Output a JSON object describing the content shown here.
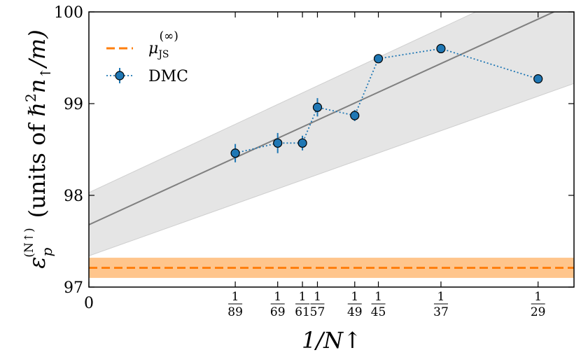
{
  "chart_data": {
    "type": "scatter",
    "title": "",
    "xlabel": "1/N↑",
    "ylabel": {
      "prefix": "ε",
      "prefix_sub": "p",
      "prefix_sup": "(N↑)",
      "units_text": "(units of ",
      "hbar": "ℏ",
      "sup2": "2",
      "n": "n",
      "n_sub": "↑",
      "tail": "/m)"
    },
    "xlim": [
      0,
      0.03724
    ],
    "ylim": [
      97,
      100
    ],
    "yticks": [
      97,
      98,
      99,
      100
    ],
    "ytick_labels": [
      "97",
      "98",
      "99",
      "100"
    ],
    "x_zero_label": "0",
    "xticks": [
      {
        "x": 0.011236,
        "num": "1",
        "den": "89"
      },
      {
        "x": 0.014493,
        "num": "1",
        "den": "69"
      },
      {
        "x": 0.016393,
        "num": "1",
        "den": "61"
      },
      {
        "x": 0.017544,
        "num": "1",
        "den": "57"
      },
      {
        "x": 0.020408,
        "num": "1",
        "den": "49"
      },
      {
        "x": 0.022222,
        "num": "1",
        "den": "45"
      },
      {
        "x": 0.027027,
        "num": "1",
        "den": "37"
      },
      {
        "x": 0.034483,
        "num": "1",
        "den": "29"
      }
    ],
    "series": [
      {
        "name": "DMC",
        "color": "#1f77b4",
        "x": [
          0.011236,
          0.014493,
          0.016393,
          0.017544,
          0.020408,
          0.022222,
          0.027027,
          0.034483
        ],
        "y": [
          98.46,
          98.57,
          98.57,
          98.96,
          98.87,
          99.49,
          99.6,
          99.27
        ],
        "yerr": [
          0.1,
          0.11,
          0.08,
          0.1,
          0.06,
          0.04,
          0.04,
          0.03
        ]
      }
    ],
    "fit": {
      "intercept": 97.68,
      "slope": 65.0,
      "color": "#808080"
    },
    "fit_band": {
      "upper_intercept": 98.03,
      "upper_end": 100.5,
      "lower_intercept": 97.34,
      "lower_end": 99.22
    },
    "reference": {
      "name": "μ_JS^(∞)",
      "value": 97.21,
      "band": [
        97.1,
        97.32
      ],
      "color": "#ff7f0e",
      "band_color": "#ffbb78"
    },
    "legend": {
      "location": "top-left",
      "entries": [
        {
          "label_main": "μ",
          "label_sub": "JS",
          "label_sup": "(∞)",
          "kind": "dashed-line"
        },
        {
          "label_main": "DMC",
          "kind": "marker-dotted"
        }
      ]
    }
  }
}
